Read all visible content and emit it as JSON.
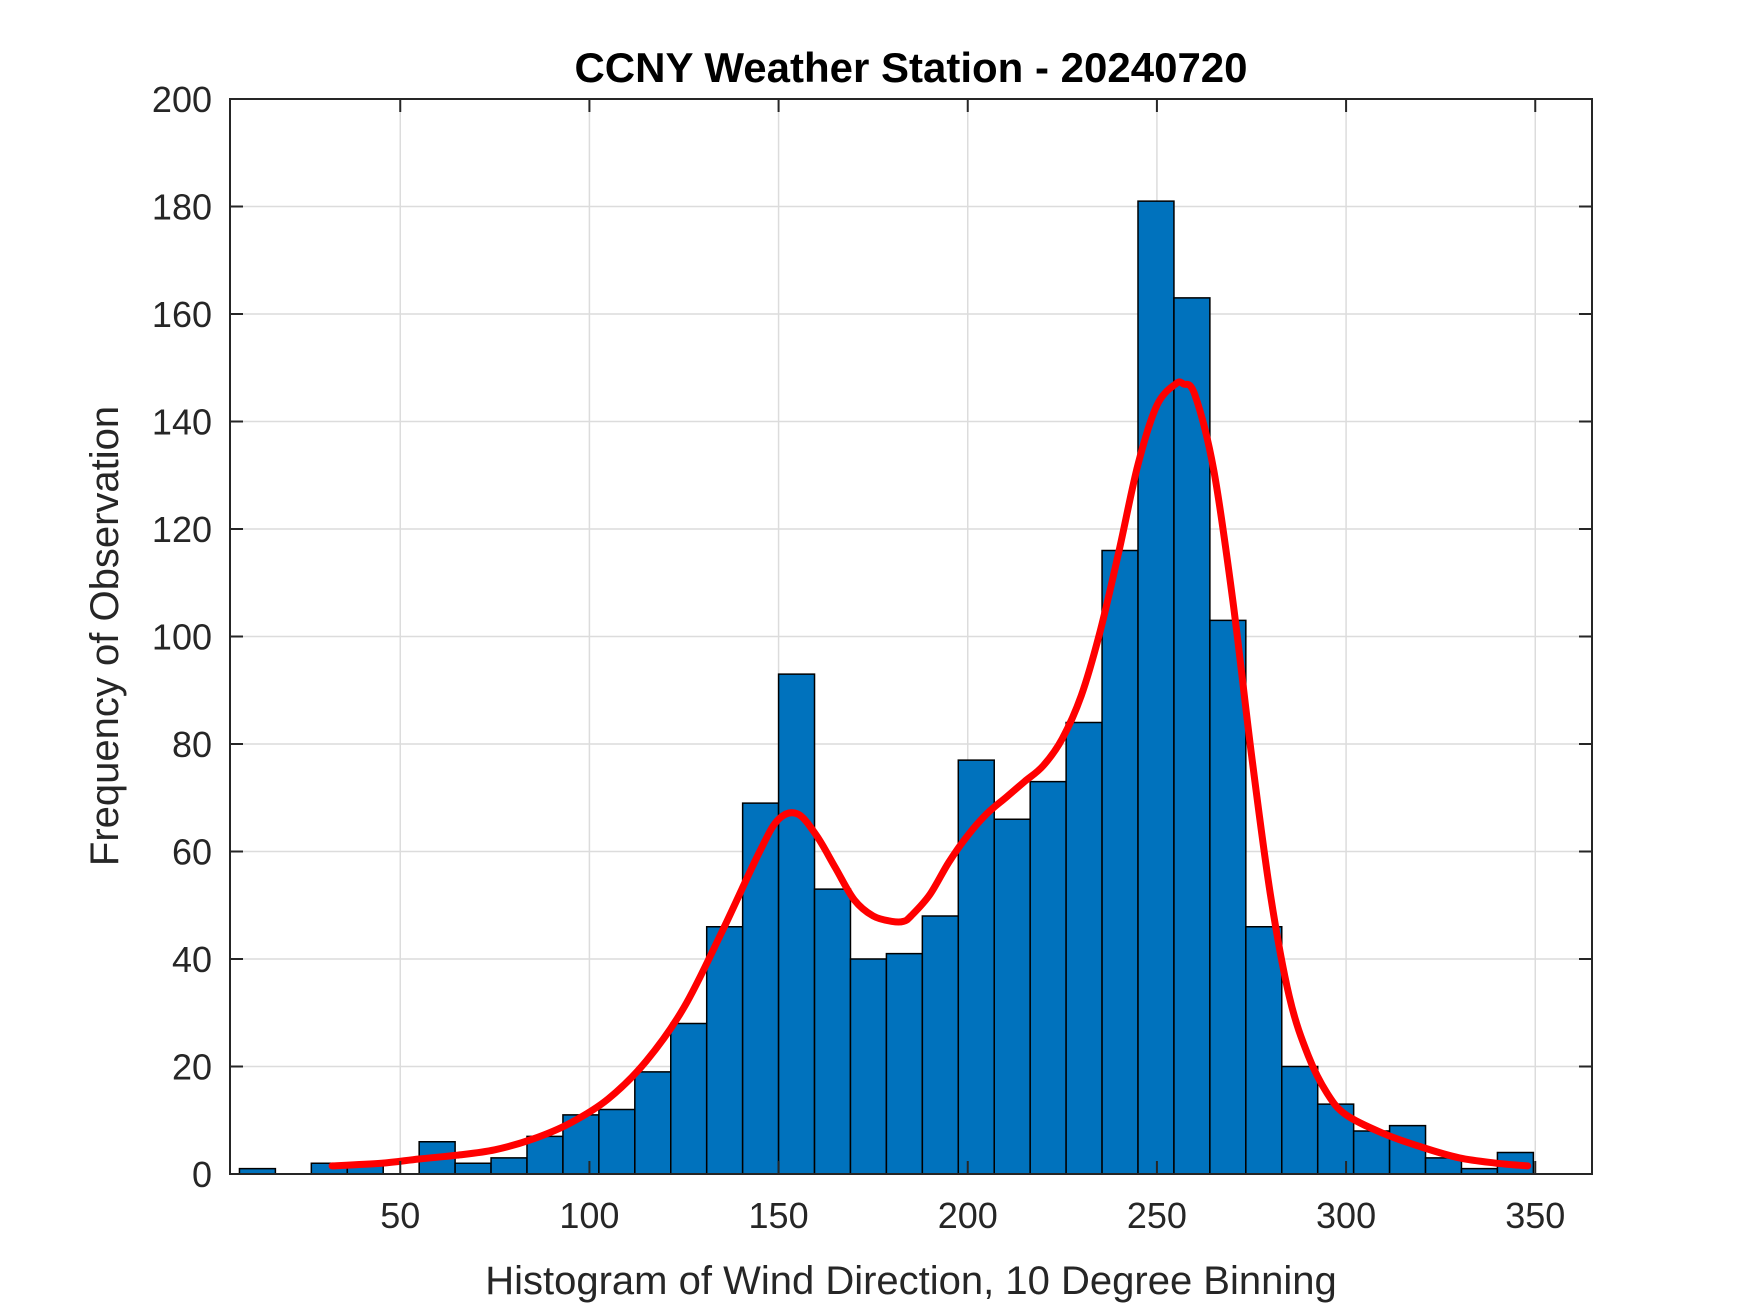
{
  "chart_data": {
    "type": "bar",
    "title": "CCNY Weather Station - 20240720",
    "xlabel": "Histogram of Wind Direction, 10 Degree Binning",
    "ylabel": "Frequency of Observation",
    "xlim": [
      5,
      365
    ],
    "ylim": [
      0,
      200
    ],
    "xticks": [
      50,
      100,
      150,
      200,
      250,
      300,
      350
    ],
    "yticks": [
      0,
      20,
      40,
      60,
      80,
      100,
      120,
      140,
      160,
      180,
      200
    ],
    "grid": true,
    "bar_color": "#0072BD",
    "curve_color": "#FF0000",
    "bins": [
      {
        "x0": 7.5,
        "x1": 17.0,
        "count": 1
      },
      {
        "x0": 17.0,
        "x1": 26.5,
        "count": 0
      },
      {
        "x0": 26.5,
        "x1": 36.0,
        "count": 2
      },
      {
        "x0": 36.0,
        "x1": 45.5,
        "count": 2
      },
      {
        "x0": 45.5,
        "x1": 55.0,
        "count": 0
      },
      {
        "x0": 55.0,
        "x1": 64.5,
        "count": 6
      },
      {
        "x0": 64.5,
        "x1": 74.0,
        "count": 2
      },
      {
        "x0": 74.0,
        "x1": 83.5,
        "count": 3
      },
      {
        "x0": 83.5,
        "x1": 93.0,
        "count": 7
      },
      {
        "x0": 93.0,
        "x1": 102.5,
        "count": 11
      },
      {
        "x0": 102.5,
        "x1": 112.0,
        "count": 12
      },
      {
        "x0": 112.0,
        "x1": 121.5,
        "count": 19
      },
      {
        "x0": 121.5,
        "x1": 131.0,
        "count": 28
      },
      {
        "x0": 131.0,
        "x1": 140.5,
        "count": 46
      },
      {
        "x0": 140.5,
        "x1": 150.0,
        "count": 69
      },
      {
        "x0": 150.0,
        "x1": 159.5,
        "count": 93
      },
      {
        "x0": 159.5,
        "x1": 169.0,
        "count": 53
      },
      {
        "x0": 169.0,
        "x1": 178.5,
        "count": 40
      },
      {
        "x0": 178.5,
        "x1": 188.0,
        "count": 41
      },
      {
        "x0": 188.0,
        "x1": 197.5,
        "count": 48
      },
      {
        "x0": 197.5,
        "x1": 207.0,
        "count": 77
      },
      {
        "x0": 207.0,
        "x1": 216.5,
        "count": 66
      },
      {
        "x0": 216.5,
        "x1": 226.0,
        "count": 73
      },
      {
        "x0": 226.0,
        "x1": 235.5,
        "count": 84
      },
      {
        "x0": 235.5,
        "x1": 245.0,
        "count": 116
      },
      {
        "x0": 245.0,
        "x1": 254.5,
        "count": 181
      },
      {
        "x0": 254.5,
        "x1": 264.0,
        "count": 163
      },
      {
        "x0": 264.0,
        "x1": 273.5,
        "count": 103
      },
      {
        "x0": 273.5,
        "x1": 283.0,
        "count": 46
      },
      {
        "x0": 283.0,
        "x1": 292.5,
        "count": 20
      },
      {
        "x0": 292.5,
        "x1": 302.0,
        "count": 13
      },
      {
        "x0": 302.0,
        "x1": 311.5,
        "count": 8
      },
      {
        "x0": 311.5,
        "x1": 321.0,
        "count": 9
      },
      {
        "x0": 321.0,
        "x1": 330.5,
        "count": 3
      },
      {
        "x0": 330.5,
        "x1": 340.0,
        "count": 1
      },
      {
        "x0": 340.0,
        "x1": 349.5,
        "count": 4
      }
    ],
    "fit_curve": {
      "x": [
        32,
        45,
        55,
        65,
        75,
        85,
        95,
        105,
        115,
        125,
        135,
        145,
        150,
        155,
        160,
        165,
        170,
        175,
        180,
        183,
        185,
        190,
        195,
        200,
        205,
        210,
        215,
        220,
        225,
        230,
        235,
        240,
        245,
        250,
        255,
        257,
        260,
        265,
        270,
        275,
        280,
        285,
        290,
        295,
        300,
        310,
        320,
        330,
        340,
        348
      ],
      "y": [
        1.5,
        2,
        2.8,
        3.5,
        4.5,
        6.5,
        9.5,
        14,
        21,
        31,
        45,
        60,
        66,
        67,
        63,
        57,
        51,
        48,
        47,
        47,
        48,
        52,
        58,
        63,
        67,
        70,
        73,
        76,
        81,
        89,
        101,
        116,
        132,
        143,
        147,
        147,
        145,
        131,
        107,
        78,
        52,
        33,
        22,
        15,
        11,
        7.5,
        5,
        3,
        2,
        1.5
      ]
    }
  }
}
